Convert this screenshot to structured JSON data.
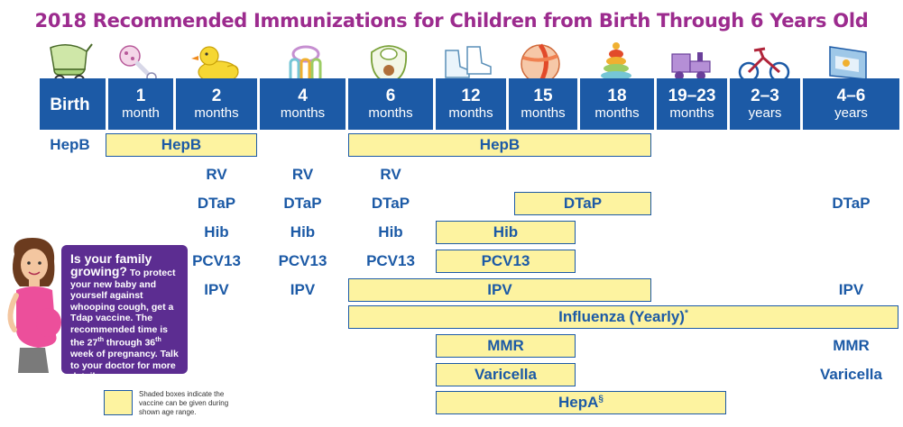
{
  "title": "2018 Recommended Immunizations for Children from Birth Through 6 Years Old",
  "colors": {
    "title": "#9c2b8e",
    "header": "#1c5aa6",
    "bar_fill": "#fdf3a0",
    "callout": "#5c2d91"
  },
  "ages": [
    {
      "num": "Birth",
      "unit": "",
      "icon": "baby-carriage-icon"
    },
    {
      "num": "1",
      "unit": "month",
      "icon": "rattle-icon"
    },
    {
      "num": "2",
      "unit": "months",
      "icon": "rubber-duck-icon"
    },
    {
      "num": "4",
      "unit": "months",
      "icon": "teething-rings-icon"
    },
    {
      "num": "6",
      "unit": "months",
      "icon": "bib-icon"
    },
    {
      "num": "12",
      "unit": "months",
      "icon": "baby-shoes-icon"
    },
    {
      "num": "15",
      "unit": "months",
      "icon": "ball-icon"
    },
    {
      "num": "18",
      "unit": "months",
      "icon": "stacking-rings-icon"
    },
    {
      "num": "19–23",
      "unit": "months",
      "icon": "toy-train-icon"
    },
    {
      "num": "2–3",
      "unit": "years",
      "icon": "tricycle-icon"
    },
    {
      "num": "4–6",
      "unit": "years",
      "icon": "book-icon"
    }
  ],
  "vaccines": {
    "hepb": "HepB",
    "rv": "RV",
    "dtap": "DTaP",
    "hib": "Hib",
    "pcv13": "PCV13",
    "ipv": "IPV",
    "influenza": "Influenza (Yearly)",
    "influenza_note": "*",
    "mmr": "MMR",
    "varicella": "Varicella",
    "hepa": "HepA",
    "hepa_note": "§"
  },
  "callout": {
    "headline1": "Is your family",
    "headline2": "growing?",
    "lead": "To protect your new baby and yourself against whooping cough, get a Tdap vaccine. The recommended time is the 27",
    "sup1": "th",
    "mid": " through 36",
    "sup2": "th",
    "tail": " week of pregnancy. Talk to your doctor for more details."
  },
  "legend": {
    "text": "Shaded boxes indicate the vaccine can be given during shown age range."
  }
}
